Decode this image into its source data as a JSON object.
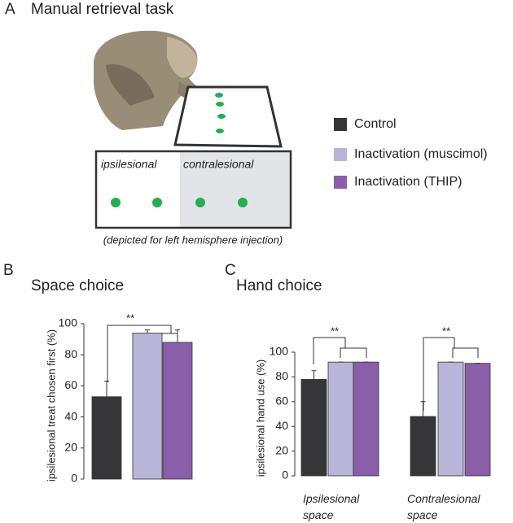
{
  "figure": {
    "panel_a": {
      "label": "A",
      "title": "Manual retrieval task",
      "left_zone": "ipsilesional",
      "right_zone": "contralesional",
      "note": "(depicted for left hemisphere injection)"
    },
    "panel_b": {
      "label": "B"
    },
    "panel_c": {
      "label": "C"
    }
  },
  "chart_data": [
    {
      "type": "bar",
      "title": "Space choice",
      "ylabel": "ipsilesional treat chosen first (%)",
      "categories": [
        null
      ],
      "ylim": [
        0,
        100
      ],
      "yticks": [
        0,
        20,
        40,
        60,
        80,
        100
      ],
      "annotations": [
        "**"
      ],
      "series": [
        {
          "name": "Control",
          "color": "#363537",
          "values": [
            53
          ],
          "errors": [
            10
          ]
        },
        {
          "name": "Inactivation (muscimol)",
          "color": "#b9b5d8",
          "values": [
            94
          ],
          "errors": [
            2
          ]
        },
        {
          "name": "Inactivation (THIP)",
          "color": "#8a5ea8",
          "values": [
            88
          ],
          "errors": [
            8
          ]
        }
      ]
    },
    {
      "type": "bar",
      "title": "Hand choice",
      "ylabel": "ipsilesional hand use (%)",
      "categories": [
        "Ipsilesional space",
        "Contralesional space"
      ],
      "ylim": [
        0,
        100
      ],
      "yticks": [
        0,
        20,
        40,
        60,
        80,
        100
      ],
      "annotations": [
        "**",
        "**"
      ],
      "series": [
        {
          "color": "#363537",
          "values": [
            78,
            48
          ],
          "errors": [
            7,
            12
          ]
        },
        {
          "color": "#b9b5d8",
          "values": [
            92,
            92
          ],
          "errors": [
            0,
            0
          ]
        },
        {
          "color": "#8a5ea8",
          "values": [
            92,
            91
          ],
          "errors": [
            0,
            0
          ]
        }
      ]
    }
  ]
}
